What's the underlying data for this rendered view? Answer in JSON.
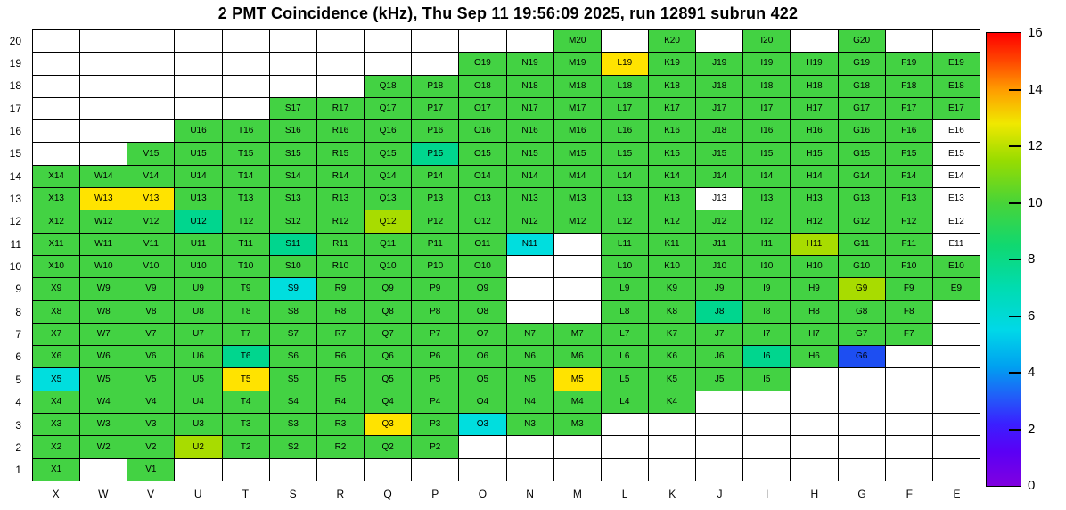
{
  "title": "2 PMT Coincidence (kHz), Thu Sep 11 19:56:09 2025, run 12891 subrun 422",
  "chart_data": {
    "type": "heatmap",
    "x_categories": [
      "X",
      "W",
      "V",
      "U",
      "T",
      "S",
      "R",
      "Q",
      "P",
      "O",
      "N",
      "M",
      "L",
      "K",
      "J",
      "I",
      "H",
      "G",
      "F",
      "E"
    ],
    "y_categories": [
      "1",
      "2",
      "3",
      "4",
      "5",
      "6",
      "7",
      "8",
      "9",
      "10",
      "11",
      "12",
      "13",
      "14",
      "15",
      "16",
      "17",
      "18",
      "19",
      "20"
    ],
    "unit": "kHz",
    "colorbar": {
      "min": 0,
      "max": 16,
      "tick_values": [
        0,
        2,
        4,
        6,
        8,
        10,
        12,
        14,
        16
      ],
      "tick_labels": [
        "0",
        "2",
        "4",
        "6",
        "8",
        "10",
        "12",
        "14",
        "16"
      ],
      "gradient_stops": [
        {
          "v": 0,
          "color": "#8000e0"
        },
        {
          "v": 1.2,
          "color": "#5a00f5"
        },
        {
          "v": 2.2,
          "color": "#3a20ff"
        },
        {
          "v": 3.2,
          "color": "#2060f8"
        },
        {
          "v": 4.2,
          "color": "#00a0f0"
        },
        {
          "v": 5.5,
          "color": "#00d8e8"
        },
        {
          "v": 7,
          "color": "#00dcb0"
        },
        {
          "v": 8.5,
          "color": "#10d870"
        },
        {
          "v": 10,
          "color": "#48d438"
        },
        {
          "v": 11.5,
          "color": "#98dc00"
        },
        {
          "v": 12.8,
          "color": "#f0e800"
        },
        {
          "v": 14,
          "color": "#ff9c00"
        },
        {
          "v": 15,
          "color": "#ff4800"
        },
        {
          "v": 16,
          "color": "#ff0000"
        }
      ]
    },
    "categories_legend": {
      "g": {
        "color": "#43d243",
        "approx_value": 10
      },
      "yg": {
        "color": "#a8dc00",
        "approx_value": 11.5
      },
      "y": {
        "color": "#ffe300",
        "approx_value": 13
      },
      "t": {
        "color": "#00d68e",
        "approx_value": 8
      },
      "c": {
        "color": "#00dede",
        "approx_value": 6
      },
      "b": {
        "color": "#1d4ef2",
        "approx_value": 3
      },
      "w": {
        "color": "#ffffff",
        "approx_value": 0
      }
    },
    "rows": {
      "20": [
        null,
        null,
        null,
        null,
        null,
        null,
        null,
        null,
        null,
        null,
        null,
        "g",
        null,
        "g",
        null,
        "g",
        null,
        "g",
        null,
        null
      ],
      "19": [
        null,
        null,
        null,
        null,
        null,
        null,
        null,
        null,
        null,
        "g",
        "g",
        "g",
        "y",
        "g",
        "g",
        "g",
        "g",
        "g",
        "g",
        "g"
      ],
      "18": [
        null,
        null,
        null,
        null,
        null,
        null,
        null,
        "g",
        "g",
        "g",
        "g",
        "g",
        "g",
        "g",
        "g",
        "g",
        "g",
        "g",
        "g",
        "g"
      ],
      "17": [
        null,
        null,
        null,
        null,
        null,
        "g",
        "g",
        "g",
        "g",
        "g",
        "g",
        "g",
        "g",
        "g",
        "g",
        "g",
        "g",
        "g",
        "g",
        "g"
      ],
      "16": [
        null,
        null,
        null,
        "g",
        "g",
        "g",
        "g",
        "g",
        "g",
        "g",
        "g",
        "g",
        "g",
        "g",
        "g",
        "g",
        "g",
        "g",
        "g",
        "w"
      ],
      "15": [
        null,
        null,
        "g",
        "g",
        "g",
        "g",
        "g",
        "g",
        "t",
        "g",
        "g",
        "g",
        "g",
        "g",
        "g",
        "g",
        "g",
        "g",
        "g",
        "w"
      ],
      "14": [
        "g",
        "g",
        "g",
        "g",
        "g",
        "g",
        "g",
        "g",
        "g",
        "g",
        "g",
        "g",
        "g",
        "g",
        "g",
        "g",
        "g",
        "g",
        "g",
        "w"
      ],
      "13": [
        "g",
        "y",
        "y",
        "g",
        "g",
        "g",
        "g",
        "g",
        "g",
        "g",
        "g",
        "g",
        "g",
        "g",
        "w",
        "g",
        "g",
        "g",
        "g",
        "w"
      ],
      "12": [
        "g",
        "g",
        "g",
        "t",
        "g",
        "g",
        "g",
        "yg",
        "g",
        "g",
        "g",
        "g",
        "g",
        "g",
        "g",
        "g",
        "g",
        "g",
        "g",
        "w"
      ],
      "11": [
        "g",
        "g",
        "g",
        "g",
        "g",
        "t",
        "g",
        "g",
        "g",
        "g",
        "c",
        null,
        "g",
        "g",
        "g",
        "g",
        "yg",
        "g",
        "g",
        "w"
      ],
      "10": [
        "g",
        "g",
        "g",
        "g",
        "g",
        "g",
        "g",
        "g",
        "g",
        "g",
        null,
        null,
        "g",
        "g",
        "g",
        "g",
        "g",
        "g",
        "g",
        "g"
      ],
      "9": [
        "g",
        "g",
        "g",
        "g",
        "g",
        "c",
        "g",
        "g",
        "g",
        "g",
        null,
        null,
        "g",
        "g",
        "g",
        "g",
        "g",
        "yg",
        "g",
        "g"
      ],
      "8": [
        "g",
        "g",
        "g",
        "g",
        "g",
        "g",
        "g",
        "g",
        "g",
        "g",
        null,
        null,
        "g",
        "g",
        "t",
        "g",
        "g",
        "g",
        "g",
        null
      ],
      "7": [
        "g",
        "g",
        "g",
        "g",
        "g",
        "g",
        "g",
        "g",
        "g",
        "g",
        "g",
        "g",
        "g",
        "g",
        "g",
        "g",
        "g",
        "g",
        "g",
        null
      ],
      "6": [
        "g",
        "g",
        "g",
        "g",
        "t",
        "g",
        "g",
        "g",
        "g",
        "g",
        "g",
        "g",
        "g",
        "g",
        "g",
        "t",
        "g",
        "b",
        null,
        null
      ],
      "5": [
        "c",
        "g",
        "g",
        "g",
        "y",
        "g",
        "g",
        "g",
        "g",
        "g",
        "g",
        "y",
        "g",
        "g",
        "g",
        "g",
        null,
        null,
        null,
        null
      ],
      "4": [
        "g",
        "g",
        "g",
        "g",
        "g",
        "g",
        "g",
        "g",
        "g",
        "g",
        "g",
        "g",
        "g",
        "g",
        null,
        null,
        null,
        null,
        null,
        null
      ],
      "3": [
        "g",
        "g",
        "g",
        "g",
        "g",
        "g",
        "g",
        "y",
        "g",
        "c",
        "g",
        "g",
        null,
        null,
        null,
        null,
        null,
        null,
        null,
        null
      ],
      "2": [
        "g",
        "g",
        "g",
        "yg",
        "g",
        "g",
        "g",
        "g",
        "g",
        null,
        null,
        null,
        null,
        null,
        null,
        null,
        null,
        null,
        null,
        null
      ],
      "1": [
        "g",
        null,
        "g",
        null,
        null,
        null,
        null,
        null,
        null,
        null,
        null,
        null,
        null,
        null,
        null,
        null,
        null,
        null,
        null,
        null
      ]
    },
    "label_overrides": {
      "16,J": "J18"
    }
  }
}
